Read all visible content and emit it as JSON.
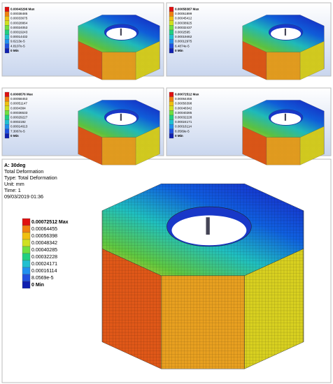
{
  "panels": [
    {
      "legend": [
        "0.00043296 Max",
        "0.00038485",
        "0.00033675",
        "0.00028864",
        "0.00024053",
        "0.00019243",
        "0.00014432",
        "9.6213e-5",
        "4.8107e-5",
        "0 Min"
      ]
    },
    {
      "legend": [
        "0.00058387 Max",
        "0.00051899",
        "0.00045412",
        "0.00038925",
        "0.00032437",
        "0.0002595",
        "0.00019462",
        "0.00012975",
        "6.4874e-5",
        "0 Min"
      ]
    },
    {
      "legend": [
        "0.0006576 Max",
        "0.00058453",
        "0.00051147",
        "0.0004384",
        "0.00036533",
        "0.00029227",
        "0.0002192",
        "0.00014613",
        "7.3067e-5",
        "0 Min"
      ]
    },
    {
      "legend": [
        "0.00072512 Max",
        "0.00064455",
        "0.00056398",
        "0.00048342",
        "0.00040285",
        "0.00032228",
        "0.00024171",
        "0.00016114",
        "8.0569e-5",
        "0 Min"
      ]
    }
  ],
  "main": {
    "header": [
      "A: 30deg",
      "Total Deformation",
      "Type: Total Deformation",
      "Unit: mm",
      "Time: 1",
      "09/03/2019 01:36"
    ],
    "legend": [
      "0.00072512 Max",
      "0.00064455",
      "0.00056398",
      "0.00048342",
      "0.00040285",
      "0.00032228",
      "0.00024171",
      "0.00016114",
      "8.0569e-5",
      "0 Min"
    ]
  }
}
